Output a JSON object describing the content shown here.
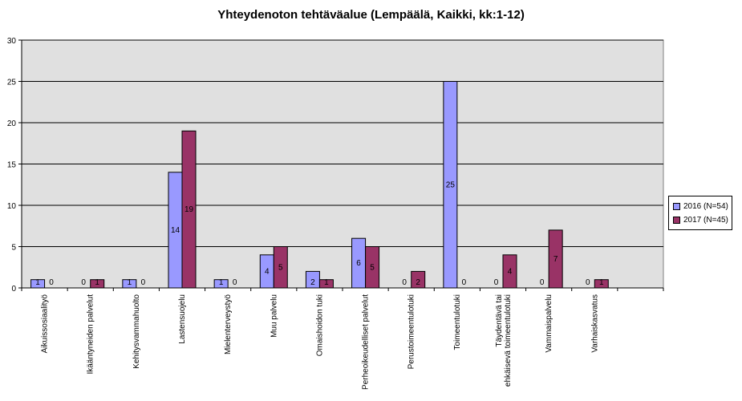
{
  "chart_data": {
    "type": "bar",
    "title": "Yhteydenoton tehtäväalue (Lempäälä, Kaikki, kk:1-12)",
    "categories": [
      "Aikuissosiaalityö",
      "Ikääntyneiden palvelut",
      "Kehitysvammahuolto",
      "Lastensuojelu",
      "Mielenterveystyö",
      "Muu palvelu",
      "Omaishoidon tuki",
      "Perheoikeudelliset palvelut",
      "Perustoimeentulotuki",
      "Toimeentulotuki",
      "Täydentävä tai ehkäisevä toimeentulotuki",
      "Vammaispalvelu",
      "Varhaiskasvatus"
    ],
    "series": [
      {
        "name": "2016 (N=54)",
        "color": "#9999ff",
        "values": [
          1,
          0,
          1,
          14,
          1,
          4,
          2,
          6,
          0,
          25,
          0,
          0,
          0
        ]
      },
      {
        "name": "2017 (N=45)",
        "color": "#993366",
        "values": [
          0,
          1,
          0,
          19,
          0,
          5,
          1,
          5,
          2,
          0,
          4,
          7,
          1
        ]
      }
    ],
    "ylim": [
      0,
      30
    ],
    "yticks": [
      0,
      5,
      10,
      15,
      20,
      25,
      30
    ],
    "grid": true,
    "legend_position": "right",
    "plot_background": "#e0e0e0"
  }
}
